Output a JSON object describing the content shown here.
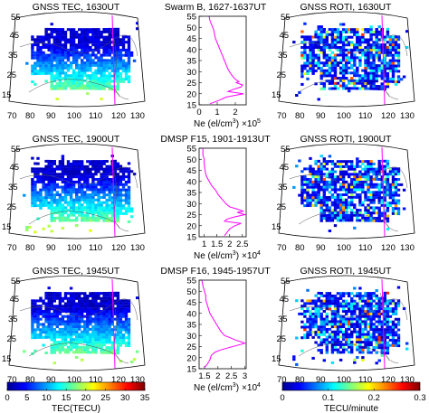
{
  "chart_data": {
    "type": "composite",
    "map_panels": [
      {
        "id": "tec1",
        "title": "GNSS TEC, 1630UT",
        "kind": "tec"
      },
      {
        "id": "roti1",
        "title": "GNSS ROTI, 1630UT",
        "kind": "roti"
      },
      {
        "id": "tec2",
        "title": "GNSS TEC, 1900UT",
        "kind": "tec"
      },
      {
        "id": "roti2",
        "title": "GNSS ROTI, 1900UT",
        "kind": "roti"
      },
      {
        "id": "tec3",
        "title": "GNSS TEC, 1945UT",
        "kind": "tec"
      },
      {
        "id": "roti3",
        "title": "GNSS ROTI, 1945UT",
        "kind": "roti"
      }
    ],
    "map_axes": {
      "lon_ticks": [
        "70",
        "80",
        "90",
        "100",
        "110",
        "120",
        "130"
      ],
      "lat_ticks": [
        "15",
        "25",
        "35",
        "45",
        "55"
      ]
    },
    "profiles": [
      {
        "title": "Swarm B, 1627-1637UT",
        "xlabel": "Ne (el/cm",
        "xlabel_sup": "3",
        "xlabel_tail": ")",
        "exponent": "×10",
        "exponent_power": "5",
        "xticks": [
          "0",
          "1",
          "2"
        ],
        "xlim": [
          0,
          2.6
        ],
        "ylim": [
          15,
          55
        ],
        "yticks": [
          "15",
          "20",
          "25",
          "30",
          "35",
          "40",
          "45",
          "50",
          "55"
        ],
        "color": "#ff00ff",
        "points": [
          [
            0.55,
            55
          ],
          [
            0.6,
            53
          ],
          [
            0.7,
            51
          ],
          [
            0.8,
            49
          ],
          [
            0.85,
            47
          ],
          [
            0.9,
            45
          ],
          [
            1.0,
            43
          ],
          [
            1.1,
            41
          ],
          [
            1.2,
            39
          ],
          [
            1.3,
            37
          ],
          [
            1.4,
            35
          ],
          [
            1.5,
            33
          ],
          [
            1.6,
            31
          ],
          [
            1.75,
            29
          ],
          [
            1.9,
            27.5
          ],
          [
            2.0,
            26.5
          ],
          [
            2.2,
            25.5
          ],
          [
            2.05,
            25
          ],
          [
            2.4,
            24
          ],
          [
            2.3,
            23
          ],
          [
            1.9,
            22
          ],
          [
            1.6,
            21
          ],
          [
            2.45,
            20
          ],
          [
            1.5,
            18.5
          ],
          [
            1.1,
            17
          ],
          [
            0.6,
            15.5
          ]
        ]
      },
      {
        "title": "DMSP F15, 1901-1913UT",
        "xlabel": "Ne (el/cm",
        "xlabel_sup": "3",
        "xlabel_tail": ")",
        "exponent": "×10",
        "exponent_power": "4",
        "xticks": [
          "1",
          "1.5",
          "2",
          "2.5"
        ],
        "xlim": [
          0.8,
          2.65
        ],
        "ylim": [
          15,
          55
        ],
        "yticks": [
          "15",
          "20",
          "25",
          "30",
          "35",
          "40",
          "45",
          "50",
          "55"
        ],
        "color": "#ff00ff",
        "points": [
          [
            0.95,
            55
          ],
          [
            0.95,
            52
          ],
          [
            1.0,
            50
          ],
          [
            1.0,
            48
          ],
          [
            1.02,
            46
          ],
          [
            1.05,
            44
          ],
          [
            1.1,
            42
          ],
          [
            1.2,
            40
          ],
          [
            1.3,
            38
          ],
          [
            1.45,
            36
          ],
          [
            1.55,
            34
          ],
          [
            1.7,
            32
          ],
          [
            1.85,
            30
          ],
          [
            2.0,
            28.5
          ],
          [
            2.3,
            27.5
          ],
          [
            2.55,
            26.5
          ],
          [
            2.3,
            26
          ],
          [
            2.6,
            25
          ],
          [
            2.2,
            24
          ],
          [
            1.9,
            23
          ],
          [
            1.8,
            22
          ],
          [
            2.45,
            21
          ],
          [
            2.2,
            20
          ],
          [
            2.0,
            18.5
          ],
          [
            1.9,
            17
          ],
          [
            1.8,
            15.5
          ]
        ]
      },
      {
        "title": "DMSP F16, 1945-1957UT",
        "xlabel": "Ne (el/cm",
        "xlabel_sup": "3",
        "xlabel_tail": ")",
        "exponent": "×10",
        "exponent_power": "4",
        "xticks": [
          "1.5",
          "2",
          "2.5",
          "3"
        ],
        "xlim": [
          1.3,
          3.05
        ],
        "ylim": [
          15,
          55
        ],
        "yticks": [
          "15",
          "20",
          "25",
          "30",
          "35",
          "40",
          "45",
          "50",
          "55"
        ],
        "color": "#ff00ff",
        "points": [
          [
            1.4,
            55
          ],
          [
            1.45,
            52
          ],
          [
            1.5,
            50
          ],
          [
            1.55,
            48
          ],
          [
            1.55,
            46
          ],
          [
            1.6,
            44
          ],
          [
            1.65,
            42
          ],
          [
            1.7,
            40
          ],
          [
            1.8,
            38
          ],
          [
            1.9,
            36
          ],
          [
            2.0,
            34
          ],
          [
            2.1,
            32
          ],
          [
            2.25,
            30
          ],
          [
            2.45,
            29
          ],
          [
            2.65,
            28
          ],
          [
            2.9,
            27
          ],
          [
            3.0,
            26.5
          ],
          [
            2.7,
            25.5
          ],
          [
            2.4,
            24.5
          ],
          [
            2.1,
            23.5
          ],
          [
            1.9,
            22.5
          ],
          [
            1.75,
            21
          ],
          [
            1.7,
            19
          ],
          [
            1.6,
            17
          ],
          [
            1.5,
            15.5
          ]
        ]
      }
    ],
    "colorbars": [
      {
        "label": "TEC(TECU)",
        "ticks": [
          "0",
          "5",
          "10",
          "15",
          "20",
          "25",
          "30",
          "35"
        ],
        "range": [
          0,
          35
        ]
      },
      {
        "label": "TECU/minute",
        "ticks": [
          "0",
          "0.1",
          "0.2",
          "0.3"
        ],
        "range": [
          0,
          0.3
        ]
      }
    ],
    "colormap": [
      "#00008f",
      "#0000ff",
      "#0080ff",
      "#00ffff",
      "#80ff80",
      "#ffff00",
      "#ff8000",
      "#ff0000",
      "#800000"
    ],
    "track_color": "#ff00ff"
  }
}
